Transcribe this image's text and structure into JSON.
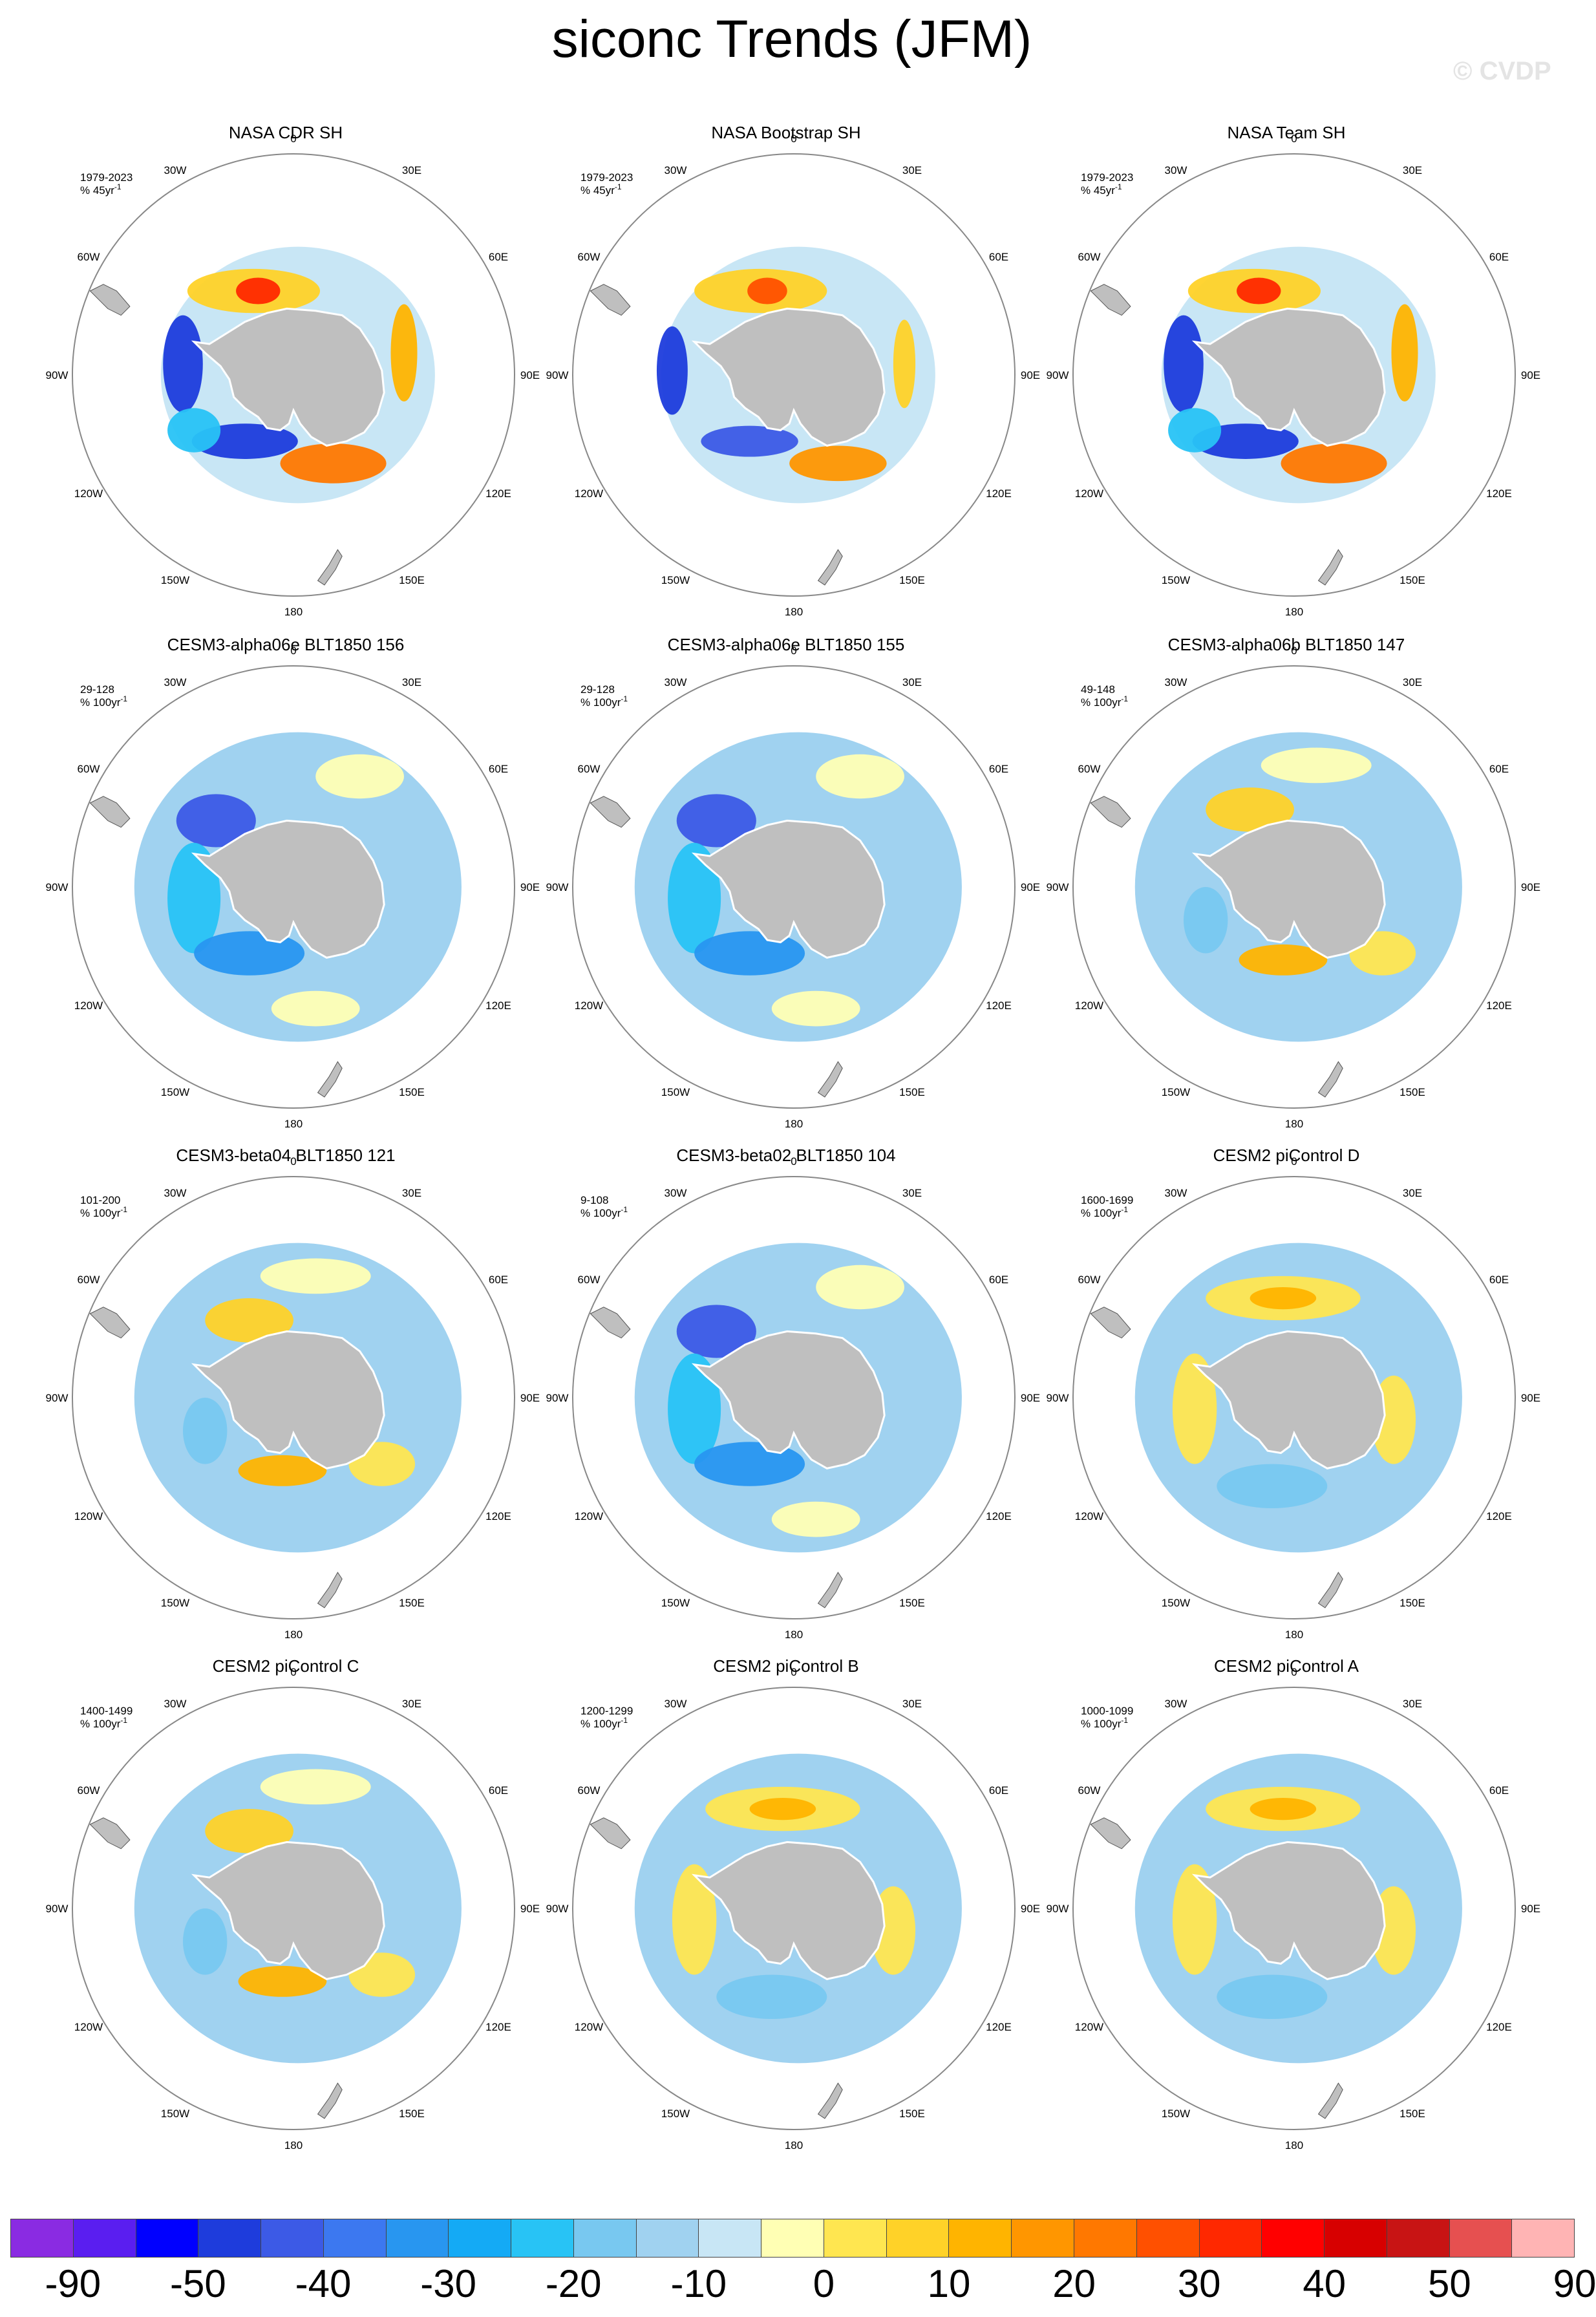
{
  "title": "siconc Trends (JFM)",
  "watermark": "© CVDP",
  "lon_labels": [
    "0",
    "30E",
    "60E",
    "90E",
    "120E",
    "150E",
    "180",
    "150W",
    "120W",
    "90W",
    "60W",
    "30W"
  ],
  "panels": [
    {
      "title": "NASA CDR SH",
      "period": "1979-2023",
      "units": "% 45yr",
      "pattern": "obs"
    },
    {
      "title": "NASA Bootstrap SH",
      "period": "1979-2023",
      "units": "% 45yr",
      "pattern": "obs2"
    },
    {
      "title": "NASA Team SH",
      "period": "1979-2023",
      "units": "% 45yr",
      "pattern": "obs"
    },
    {
      "title": "CESM3-alpha06e BLT1850 156",
      "period": "29-128",
      "units": "% 100yr",
      "pattern": "neg"
    },
    {
      "title": "CESM3-alpha06e BLT1850 155",
      "period": "29-128",
      "units": "% 100yr",
      "pattern": "neg"
    },
    {
      "title": "CESM3-alpha06b BLT1850 147",
      "period": "49-148",
      "units": "% 100yr",
      "pattern": "mix"
    },
    {
      "title": "CESM3-beta04 BLT1850 121",
      "period": "101-200",
      "units": "% 100yr",
      "pattern": "mix"
    },
    {
      "title": "CESM3-beta02 BLT1850 104",
      "period": "9-108",
      "units": "% 100yr",
      "pattern": "neg"
    },
    {
      "title": "CESM2 piControl D",
      "period": "1600-1699",
      "units": "% 100yr",
      "pattern": "pos"
    },
    {
      "title": "CESM2 piControl C",
      "period": "1400-1499",
      "units": "% 100yr",
      "pattern": "mix"
    },
    {
      "title": "CESM2 piControl B",
      "period": "1200-1299",
      "units": "% 100yr",
      "pattern": "pos"
    },
    {
      "title": "CESM2 piControl A",
      "period": "1000-1099",
      "units": "% 100yr",
      "pattern": "pos"
    }
  ],
  "colorbar": {
    "colors": [
      "#8a2be2",
      "#5a1ef0",
      "#0000ff",
      "#1e3cdc",
      "#3c5ae6",
      "#3c78f0",
      "#2896f0",
      "#14aaf5",
      "#28c3f5",
      "#78c8f0",
      "#a0d2f0",
      "#c8e6f5",
      "#ffffb4",
      "#ffe650",
      "#ffd228",
      "#ffb400",
      "#ff9600",
      "#ff7800",
      "#ff5000",
      "#ff2800",
      "#ff0000",
      "#d70000",
      "#c81414",
      "#e65050",
      "#ffb4b4"
    ],
    "labels": [
      "-90",
      "-50",
      "-40",
      "-30",
      "-20",
      "-10",
      "0",
      "10",
      "20",
      "30",
      "40",
      "50",
      "90"
    ]
  }
}
